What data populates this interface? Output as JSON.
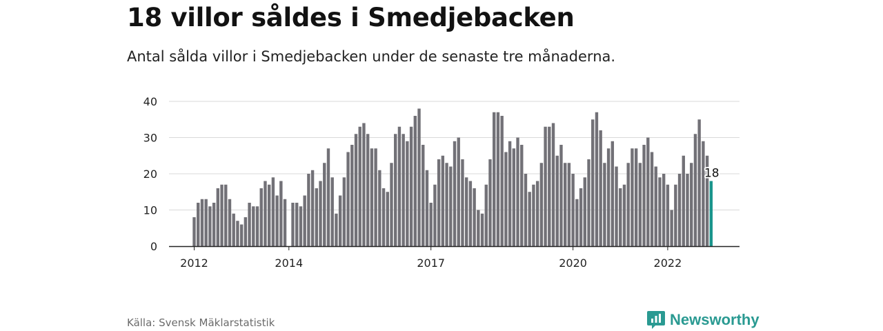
{
  "header": {
    "title": "18 villor såldes i Smedjebacken",
    "subtitle": "Antal sålda villor i Smedjebacken under de senaste tre månaderna."
  },
  "footer": {
    "source": "Källa: Svensk Mäklarstatistik",
    "brand": "Newsworthy",
    "brand_icon": "newsworthy-logo-icon"
  },
  "colors": {
    "bar": "#727177",
    "highlight": "#1a958c",
    "grid": "#d9d9d9",
    "axis": "#222222",
    "brand": "#2a9a92"
  },
  "chart_data": {
    "type": "bar",
    "title": "18 villor såldes i Smedjebacken",
    "subtitle": "Antal sålda villor i Smedjebacken under de senaste tre månaderna.",
    "y_ticks": [
      0,
      10,
      20,
      30,
      40
    ],
    "ylim": [
      0,
      40
    ],
    "grid": true,
    "x_tick_labels": [
      "2012",
      "2014",
      "2017",
      "2020",
      "2022"
    ],
    "values": [
      8,
      12,
      13,
      13,
      11,
      12,
      16,
      17,
      17,
      13,
      9,
      7,
      6,
      8,
      12,
      11,
      11,
      16,
      18,
      17,
      19,
      14,
      18,
      13,
      null,
      12,
      12,
      11,
      14,
      20,
      21,
      16,
      18,
      23,
      27,
      19,
      9,
      14,
      19,
      26,
      28,
      31,
      33,
      34,
      31,
      27,
      27,
      21,
      16,
      15,
      23,
      31,
      33,
      31,
      29,
      33,
      36,
      38,
      28,
      21,
      12,
      17,
      24,
      25,
      23,
      22,
      29,
      30,
      24,
      19,
      18,
      16,
      10,
      9,
      17,
      24,
      37,
      37,
      36,
      26,
      29,
      27,
      30,
      28,
      20,
      15,
      17,
      18,
      23,
      33,
      33,
      34,
      25,
      28,
      23,
      23,
      20,
      13,
      16,
      19,
      24,
      35,
      37,
      32,
      23,
      27,
      29,
      22,
      16,
      17,
      23,
      27,
      27,
      23,
      28,
      30,
      26,
      22,
      19,
      20,
      17,
      10,
      17,
      20,
      25,
      20,
      23,
      31,
      35,
      29,
      25,
      18
    ],
    "x_tick_indices": [
      0,
      24,
      60,
      96,
      120
    ],
    "highlight_last": true,
    "last_value_label": "18"
  }
}
